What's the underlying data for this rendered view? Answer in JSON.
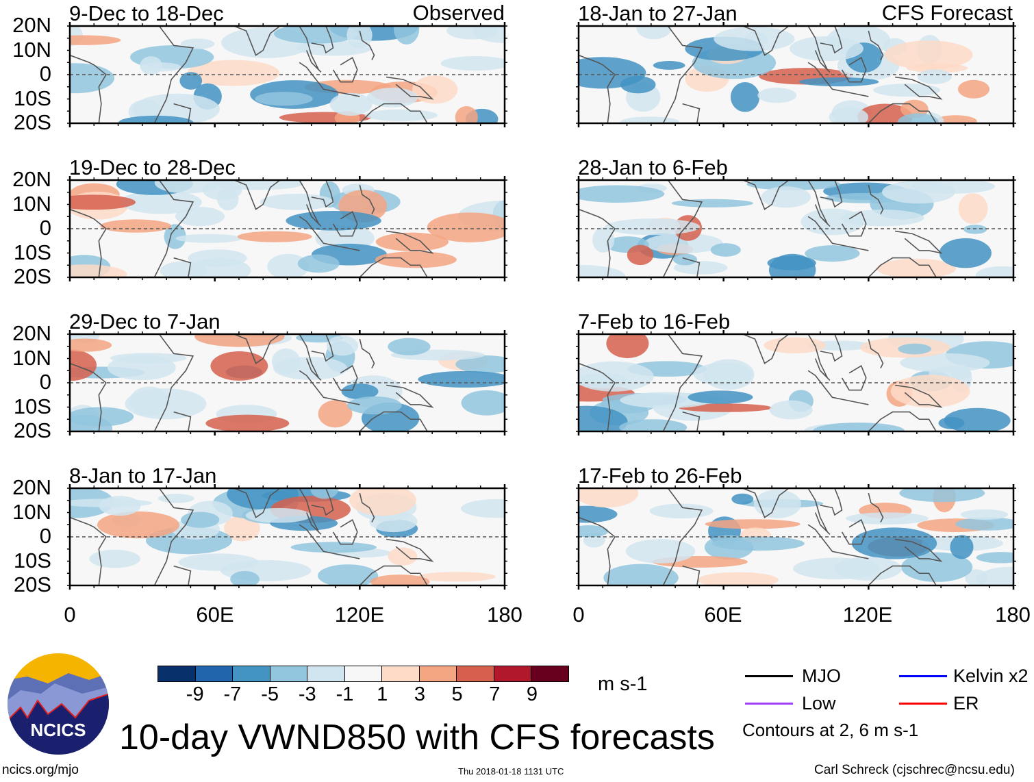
{
  "observed_label": "Observed",
  "forecast_label": "CFS Forecast",
  "panels": [
    {
      "title": "9-Dec to 18-Dec",
      "group": "observed"
    },
    {
      "title": "19-Dec to 28-Dec",
      "group": "observed"
    },
    {
      "title": "29-Dec to 7-Jan",
      "group": "observed"
    },
    {
      "title": "8-Jan to 17-Jan",
      "group": "observed"
    },
    {
      "title": "18-Jan to 27-Jan",
      "group": "forecast"
    },
    {
      "title": "28-Jan to 6-Feb",
      "group": "forecast"
    },
    {
      "title": "7-Feb to 16-Feb",
      "group": "forecast"
    },
    {
      "title": "17-Feb to 26-Feb",
      "group": "forecast"
    }
  ],
  "lat_labels": [
    "20N",
    "10N",
    "0",
    "10S",
    "20S"
  ],
  "lon_labels": [
    "0",
    "60E",
    "120E",
    "180"
  ],
  "colorbar": {
    "colors": [
      "#08306b",
      "#2166ac",
      "#4393c3",
      "#92c5de",
      "#d1e5f0",
      "#f7f7f7",
      "#fddbc7",
      "#f4a582",
      "#d6604d",
      "#b2182b",
      "#67001f"
    ],
    "ticks": [
      "-9",
      "-7",
      "-5",
      "-3",
      "-1",
      "1",
      "3",
      "5",
      "7",
      "9"
    ],
    "units": "m s-1"
  },
  "legend": {
    "items": [
      {
        "label": "MJO",
        "color": "#000000"
      },
      {
        "label": "Kelvin x2",
        "color": "#0000ff"
      },
      {
        "label": "Low",
        "color": "#a040ff"
      },
      {
        "label": "ER",
        "color": "#ff0000"
      }
    ],
    "contours_note": "Contours at 2, 6 m s-1"
  },
  "logo_text": "NCICS",
  "main_title": "10-day VWND850 with CFS forecasts",
  "footer": {
    "url": "ncics.org/mjo",
    "timestamp": "Thu 2018-01-18 1131 UTC",
    "author": "Carl Schreck (cjschrec@ncsu.edu)"
  }
}
